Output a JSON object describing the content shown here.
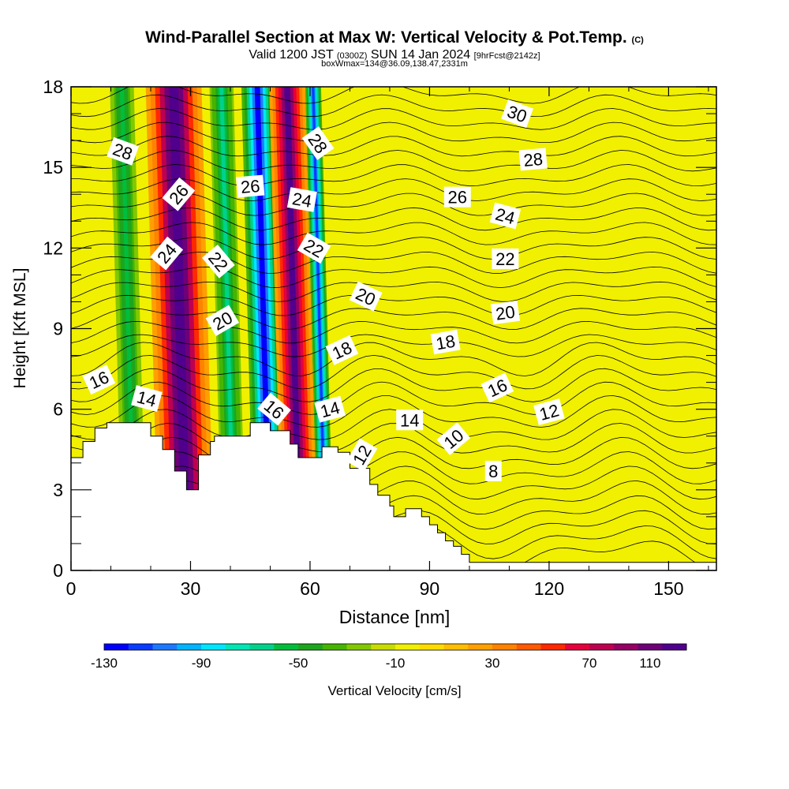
{
  "title": {
    "main": "Wind-Parallel Section at Max W: Vertical Velocity & Pot.Temp.",
    "mark": "(C)"
  },
  "subtitle": {
    "valid": "Valid 1200 JST",
    "utc": "(0300Z)",
    "date": "SUN 14 Jan 2024",
    "fcst": "[9hrFcst@2142z]"
  },
  "note": "boxWmax=134@36.09,138.47,2331m",
  "chart_data": {
    "type": "heatmap",
    "xlabel": "Distance [nm]",
    "ylabel": "Height [Kft MSL]",
    "xlim": [
      0,
      162
    ],
    "ylim": [
      0,
      18
    ],
    "xticks": [
      0,
      30,
      60,
      90,
      120,
      150
    ],
    "yticks": [
      0,
      3,
      6,
      9,
      12,
      15,
      18
    ],
    "colorbar": {
      "label": "Vertical Velocity [cm/s]",
      "ticks": [
        "-130",
        "-90",
        "-50",
        "-10",
        "30",
        "70",
        "110"
      ],
      "colors": [
        "#0000ff",
        "#0a3cff",
        "#1e78ff",
        "#00b4ff",
        "#00e6ff",
        "#00e6b4",
        "#00d28c",
        "#00be3c",
        "#1ea51e",
        "#46b400",
        "#82c800",
        "#c8dc00",
        "#f0f000",
        "#ffdc00",
        "#ffbe00",
        "#ffa000",
        "#ff8200",
        "#ff5a00",
        "#ff2800",
        "#e6003c",
        "#be0050",
        "#960064",
        "#6e0078",
        "#50008c"
      ]
    },
    "updraft_bands": [
      {
        "name": "",
        "x": [
          22,
          30,
          36
        ],
        "peak": 120
      },
      {
        "name": "",
        "x": [
          53,
          57,
          62
        ],
        "peak": 110
      }
    ],
    "downdraft_bands": [
      {
        "x": [
          13,
          16,
          19
        ],
        "peak": -50
      },
      {
        "x": [
          38,
          41,
          44
        ],
        "peak": -60
      },
      {
        "x": [
          46,
          50,
          54
        ],
        "peak": -120
      },
      {
        "x": [
          62,
          64,
          66
        ],
        "peak": -110
      }
    ],
    "terrain": {
      "x": [
        0,
        3,
        3,
        6,
        6,
        9,
        9,
        10,
        10,
        20,
        20,
        23,
        23,
        26,
        26,
        29,
        29,
        32,
        32,
        35,
        35,
        36,
        36,
        45,
        45,
        50,
        50,
        55,
        55,
        57,
        57,
        63,
        63,
        67,
        67,
        70,
        70,
        75,
        75,
        77,
        77,
        80,
        80,
        81,
        81,
        84,
        84,
        86,
        86,
        88,
        88,
        90,
        90,
        92,
        92,
        94,
        94,
        96,
        96,
        98,
        98,
        100,
        100,
        102,
        102,
        162
      ],
      "y": [
        4.2,
        4.2,
        4.8,
        4.8,
        5.3,
        5.3,
        5.5,
        5.5,
        5.5,
        5.5,
        5.0,
        5.0,
        4.5,
        4.5,
        3.7,
        3.7,
        3.0,
        3.0,
        4.3,
        4.3,
        4.8,
        4.8,
        5.0,
        5.0,
        5.5,
        5.5,
        5.2,
        5.2,
        4.7,
        4.7,
        4.2,
        4.2,
        4.6,
        4.6,
        4.4,
        4.4,
        3.8,
        3.8,
        3.2,
        3.2,
        2.8,
        2.8,
        2.4,
        2.4,
        2.0,
        2.0,
        2.3,
        2.3,
        2.3,
        2.3,
        2.0,
        2.0,
        1.7,
        1.7,
        1.4,
        1.4,
        1.1,
        1.1,
        0.9,
        0.9,
        0.6,
        0.6,
        0.3,
        0.3,
        0.3,
        0.3
      ]
    },
    "contour_labels": [
      {
        "text": "28",
        "x": 13,
        "y": 15.6,
        "angle": 20
      },
      {
        "text": "26",
        "x": 27,
        "y": 14.0,
        "angle": -50
      },
      {
        "text": "24",
        "x": 24,
        "y": 11.8,
        "angle": -50
      },
      {
        "text": "22",
        "x": 37,
        "y": 11.5,
        "angle": 50
      },
      {
        "text": "20",
        "x": 38,
        "y": 9.3,
        "angle": -30
      },
      {
        "text": "16",
        "x": 7,
        "y": 7.1,
        "angle": -25
      },
      {
        "text": "14",
        "x": 19,
        "y": 6.4,
        "angle": 15
      },
      {
        "text": "26",
        "x": 45,
        "y": 14.3,
        "angle": -5
      },
      {
        "text": "28",
        "x": 62,
        "y": 15.9,
        "angle": 55
      },
      {
        "text": "24",
        "x": 58,
        "y": 13.8,
        "angle": 10
      },
      {
        "text": "22",
        "x": 61,
        "y": 12.0,
        "angle": 30
      },
      {
        "text": "20",
        "x": 74,
        "y": 10.2,
        "angle": 25
      },
      {
        "text": "18",
        "x": 68,
        "y": 8.2,
        "angle": -25
      },
      {
        "text": "16",
        "x": 51,
        "y": 6.0,
        "angle": 40
      },
      {
        "text": "14",
        "x": 65,
        "y": 6.0,
        "angle": -15
      },
      {
        "text": "12",
        "x": 73,
        "y": 4.3,
        "angle": -60
      },
      {
        "text": "14",
        "x": 85,
        "y": 5.6,
        "angle": 0
      },
      {
        "text": "10",
        "x": 96,
        "y": 4.9,
        "angle": -40
      },
      {
        "text": "8",
        "x": 106,
        "y": 3.7,
        "angle": 0
      },
      {
        "text": "18",
        "x": 94,
        "y": 8.5,
        "angle": -10
      },
      {
        "text": "16",
        "x": 107,
        "y": 6.8,
        "angle": -25
      },
      {
        "text": "12",
        "x": 120,
        "y": 5.9,
        "angle": -15
      },
      {
        "text": "26",
        "x": 97,
        "y": 13.9,
        "angle": 0
      },
      {
        "text": "20",
        "x": 109,
        "y": 9.6,
        "angle": -8
      },
      {
        "text": "22",
        "x": 109,
        "y": 11.6,
        "angle": 0
      },
      {
        "text": "24",
        "x": 109,
        "y": 13.2,
        "angle": 15
      },
      {
        "text": "28",
        "x": 116,
        "y": 15.3,
        "angle": -5
      },
      {
        "text": "30",
        "x": 112,
        "y": 17.0,
        "angle": 20
      }
    ]
  }
}
